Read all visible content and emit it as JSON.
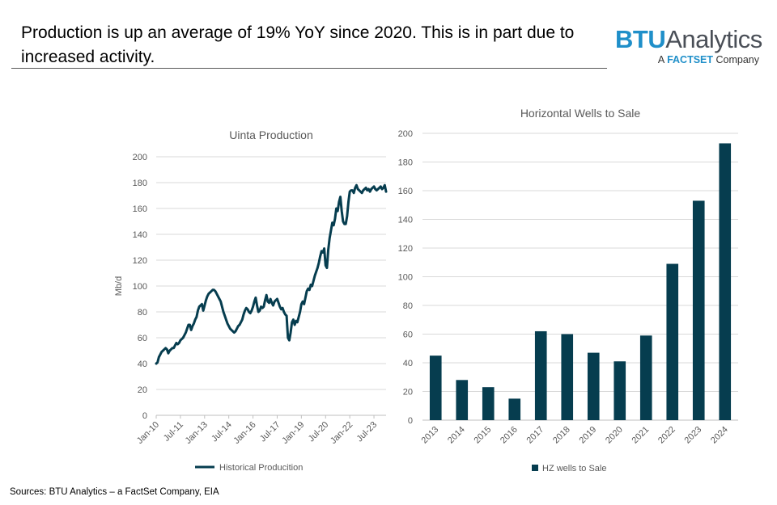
{
  "header": {
    "headline": "Production is up an average of 19% YoY since 2020. This is in part due to increased activity."
  },
  "logo": {
    "brand": "BTU",
    "brand_rest": "Analytics",
    "tagline_prefix": "A",
    "tagline_company": "FACTSET",
    "tagline_suffix": "Company"
  },
  "footer": {
    "source": "Sources: BTU Analytics – a FactSet Company, EIA"
  },
  "colors": {
    "series": "#063d4f",
    "gridline": "#d9d9d9",
    "axis_text": "#595959"
  },
  "chart_data": [
    {
      "type": "line",
      "title": "Uinta Production",
      "ylabel": "Mb/d",
      "xlabel": "",
      "ylim": [
        0,
        200
      ],
      "yticks": [
        0,
        20,
        40,
        60,
        80,
        100,
        120,
        140,
        160,
        180,
        200
      ],
      "x_range": [
        0,
        171
      ],
      "xticks": [
        {
          "label": "Jan-10",
          "month_index": 0
        },
        {
          "label": "Jul-11",
          "month_index": 18
        },
        {
          "label": "Jan-13",
          "month_index": 36
        },
        {
          "label": "Jul-14",
          "month_index": 54
        },
        {
          "label": "Jan-16",
          "month_index": 72
        },
        {
          "label": "Jul-17",
          "month_index": 90
        },
        {
          "label": "Jan-19",
          "month_index": 108
        },
        {
          "label": "Jul-20",
          "month_index": 126
        },
        {
          "label": "Jan-22",
          "month_index": 144
        },
        {
          "label": "Jul-23",
          "month_index": 162
        }
      ],
      "legend": "bottom",
      "grid": true,
      "series": [
        {
          "name": "Historical Producition",
          "x": [
            0,
            1,
            2,
            3,
            4,
            5,
            6,
            7,
            8,
            9,
            10,
            11,
            12,
            13,
            14,
            15,
            16,
            17,
            18,
            19,
            20,
            21,
            22,
            23,
            24,
            25,
            26,
            27,
            28,
            29,
            30,
            31,
            32,
            33,
            34,
            35,
            36,
            37,
            38,
            39,
            40,
            41,
            42,
            43,
            44,
            45,
            46,
            47,
            48,
            49,
            50,
            51,
            52,
            53,
            54,
            55,
            56,
            57,
            58,
            59,
            60,
            61,
            62,
            63,
            64,
            65,
            66,
            67,
            68,
            69,
            70,
            71,
            72,
            73,
            74,
            75,
            76,
            77,
            78,
            79,
            80,
            81,
            82,
            83,
            84,
            85,
            86,
            87,
            88,
            89,
            90,
            91,
            92,
            93,
            94,
            95,
            96,
            97,
            98,
            99,
            100,
            101,
            102,
            103,
            104,
            105,
            106,
            107,
            108,
            109,
            110,
            111,
            112,
            113,
            114,
            115,
            116,
            117,
            118,
            119,
            120,
            121,
            122,
            123,
            124,
            125,
            126,
            127,
            128,
            129,
            130,
            131,
            132,
            133,
            134,
            135,
            136,
            137,
            138,
            139,
            140,
            141,
            142,
            143,
            144,
            145,
            146,
            147,
            148,
            149,
            150,
            151,
            152,
            153,
            154,
            155,
            156,
            157,
            158,
            159,
            160,
            161,
            162,
            163,
            164,
            165,
            166,
            167,
            168,
            169,
            170,
            171
          ],
          "values": [
            40,
            41,
            45,
            47,
            49,
            50,
            51,
            52,
            51,
            48,
            50,
            51,
            52,
            52,
            54,
            56,
            55,
            56,
            58,
            59,
            60,
            62,
            64,
            67,
            70,
            70,
            66,
            69,
            71,
            74,
            76,
            81,
            84,
            85,
            86,
            81,
            85,
            89,
            92,
            94,
            95,
            96,
            97,
            97,
            96,
            94,
            92,
            90,
            88,
            84,
            80,
            77,
            74,
            71,
            69,
            67,
            66,
            65,
            64,
            65,
            67,
            69,
            70,
            72,
            74,
            78,
            81,
            83,
            82,
            80,
            79,
            81,
            84,
            88,
            91,
            85,
            80,
            81,
            84,
            83,
            84,
            89,
            93,
            88,
            87,
            90,
            87,
            85,
            88,
            89,
            90,
            87,
            84,
            82,
            83,
            80,
            78,
            77,
            60,
            58,
            64,
            72,
            74,
            70,
            73,
            72,
            76,
            80,
            86,
            88,
            86,
            91,
            96,
            98,
            97,
            101,
            100,
            104,
            108,
            111,
            114,
            118,
            123,
            127,
            126,
            129,
            116,
            114,
            128,
            137,
            143,
            149,
            147,
            152,
            160,
            158,
            165,
            169,
            158,
            150,
            148,
            148,
            154,
            165,
            173,
            174,
            174,
            172,
            176,
            178,
            175,
            174,
            173,
            172,
            174,
            175,
            176,
            174,
            175,
            173,
            175,
            176,
            177,
            175,
            174,
            175,
            176,
            177,
            175,
            176,
            178,
            173
          ],
          "color": "#063d4f"
        }
      ]
    },
    {
      "type": "bar",
      "title": "Horizontal Wells to Sale",
      "xlabel": "",
      "ylabel": "",
      "ylim": [
        0,
        200
      ],
      "yticks": [
        0,
        20,
        40,
        60,
        80,
        100,
        120,
        140,
        160,
        180,
        200
      ],
      "categories": [
        "2013",
        "2014",
        "2015",
        "2016",
        "2017",
        "2018",
        "2019",
        "2020",
        "2021",
        "2022",
        "2023",
        "2024"
      ],
      "series": [
        {
          "name": "HZ wells to Sale",
          "values": [
            45,
            28,
            23,
            15,
            62,
            60,
            47,
            41,
            59,
            109,
            153,
            193
          ],
          "color": "#063d4f"
        }
      ],
      "legend": "bottom",
      "grid": true
    }
  ]
}
